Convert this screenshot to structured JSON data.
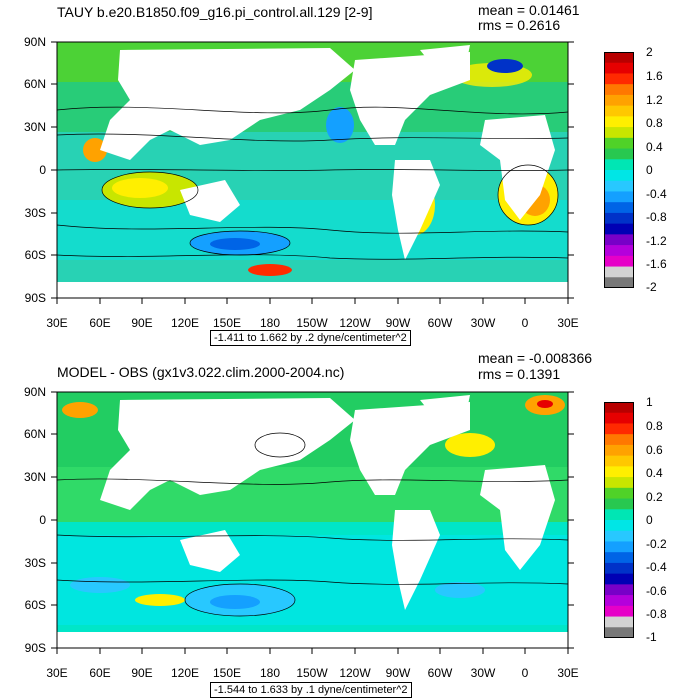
{
  "panels": [
    {
      "title": "TAUY b.e20.B1850.f09_g16.pi_control.all.129 [2-9]",
      "mean": "mean = 0.01461",
      "rms": "rms = 0.2616",
      "range_text": "-1.411 to 1.662 by .2 dyne/centimeter^2",
      "lat_labels": [
        "90N",
        "60N",
        "30N",
        "0",
        "30S",
        "60S",
        "90S"
      ],
      "lon_labels": [
        "30E",
        "60E",
        "90E",
        "120E",
        "150E",
        "180",
        "150W",
        "120W",
        "90W",
        "60W",
        "30W",
        "0",
        "30E"
      ],
      "colorbar": {
        "labels": [
          "2",
          "1.6",
          "1.2",
          "0.8",
          "0.4",
          "0",
          "-0.4",
          "-0.8",
          "-1.2",
          "-1.6",
          "-2"
        ],
        "colors": [
          "#b80000",
          "#e60000",
          "#ff2a00",
          "#ff7800",
          "#ffa200",
          "#ffc800",
          "#ffef00",
          "#c8e600",
          "#50d228",
          "#28c850",
          "#00e6b4",
          "#00e6e6",
          "#28c8ff",
          "#14a0ff",
          "#0064e6",
          "#0032c8",
          "#0000b4",
          "#7800c8",
          "#b400dc",
          "#e600c8",
          "#d2d2d2",
          "#787878"
        ]
      }
    },
    {
      "title": "MODEL - OBS (gx1v3.022.clim.2000-2004.nc)",
      "mean": "mean = -0.008366",
      "rms": "rms = 0.1391",
      "range_text": "-1.544 to 1.633 by .1 dyne/centimeter^2",
      "lat_labels": [
        "90N",
        "60N",
        "30N",
        "0",
        "30S",
        "60S",
        "90S"
      ],
      "lon_labels": [
        "30E",
        "60E",
        "90E",
        "120E",
        "150E",
        "180",
        "150W",
        "120W",
        "90W",
        "60W",
        "30W",
        "0",
        "30E"
      ],
      "colorbar": {
        "labels": [
          "1",
          "0.8",
          "0.6",
          "0.4",
          "0.2",
          "0",
          "-0.2",
          "-0.4",
          "-0.6",
          "-0.8",
          "-1"
        ],
        "colors": [
          "#b80000",
          "#e60000",
          "#ff2a00",
          "#ff7800",
          "#ffa200",
          "#ffc800",
          "#ffef00",
          "#c8e600",
          "#50d228",
          "#28c850",
          "#00e6b4",
          "#00e6e6",
          "#28c8ff",
          "#14a0ff",
          "#0064e6",
          "#0032c8",
          "#0000b4",
          "#7800c8",
          "#b400dc",
          "#e600c8",
          "#d2d2d2",
          "#787878"
        ]
      }
    }
  ],
  "palette": {
    "land": "#ffffff",
    "ocean_base_top": "#00e6c8",
    "ocean_base_bottom": "#28d2b4",
    "contour": "#000000",
    "frame": "#000000"
  }
}
